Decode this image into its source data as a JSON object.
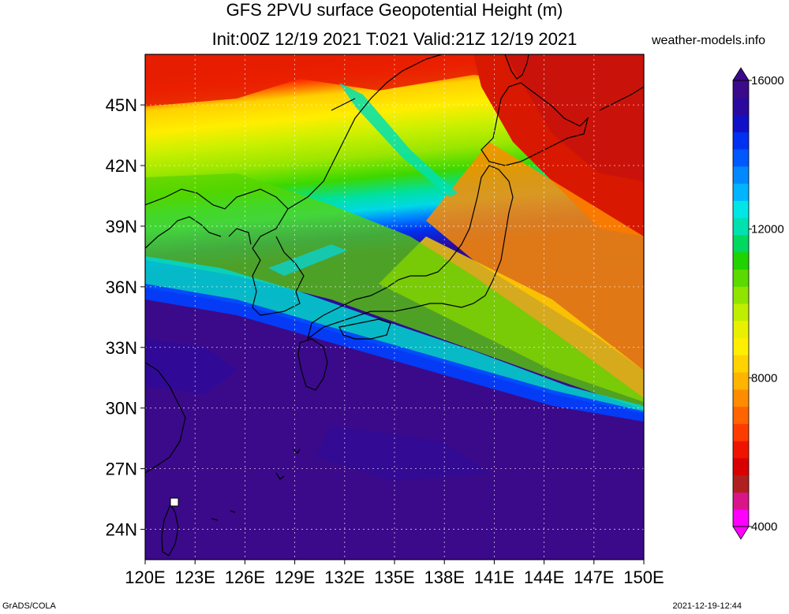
{
  "header": {
    "title_line1": "GFS 2PVU surface Geopotential Height (m)",
    "title_line2": "Init:00Z 12/19 2021 T:021 Valid:21Z 12/19 2021",
    "source": "weather-models.info"
  },
  "map": {
    "lon_range": [
      120,
      150
    ],
    "lat_range": [
      22.5,
      47.5
    ],
    "lon_ticks": [
      "120E",
      "123E",
      "126E",
      "129E",
      "132E",
      "135E",
      "138E",
      "141E",
      "144E",
      "147E",
      "150E"
    ],
    "lat_ticks": [
      "24N",
      "27N",
      "30N",
      "33N",
      "36N",
      "39N",
      "42N",
      "45N"
    ],
    "grid": true
  },
  "colorbar": {
    "labels": [
      "4000",
      "8000",
      "12000",
      "16000"
    ],
    "min": 4000,
    "max": 16000,
    "colors": [
      "#ff00ff",
      "#d8168a",
      "#b02020",
      "#d80000",
      "#f01400",
      "#ff3c00",
      "#ff6400",
      "#ff8c00",
      "#ffb400",
      "#ffd200",
      "#ffee00",
      "#e8f000",
      "#c0ee00",
      "#90e400",
      "#5ada00",
      "#20d200",
      "#00d860",
      "#00e0b0",
      "#00e6e6",
      "#00b4ff",
      "#0088ff",
      "#0058ff",
      "#0030f0",
      "#1010c8",
      "#2a0a9e",
      "#3a0a8a"
    ]
  },
  "footer": {
    "left": "GrADS/COLA",
    "right": "2021-12-19-12:44"
  }
}
